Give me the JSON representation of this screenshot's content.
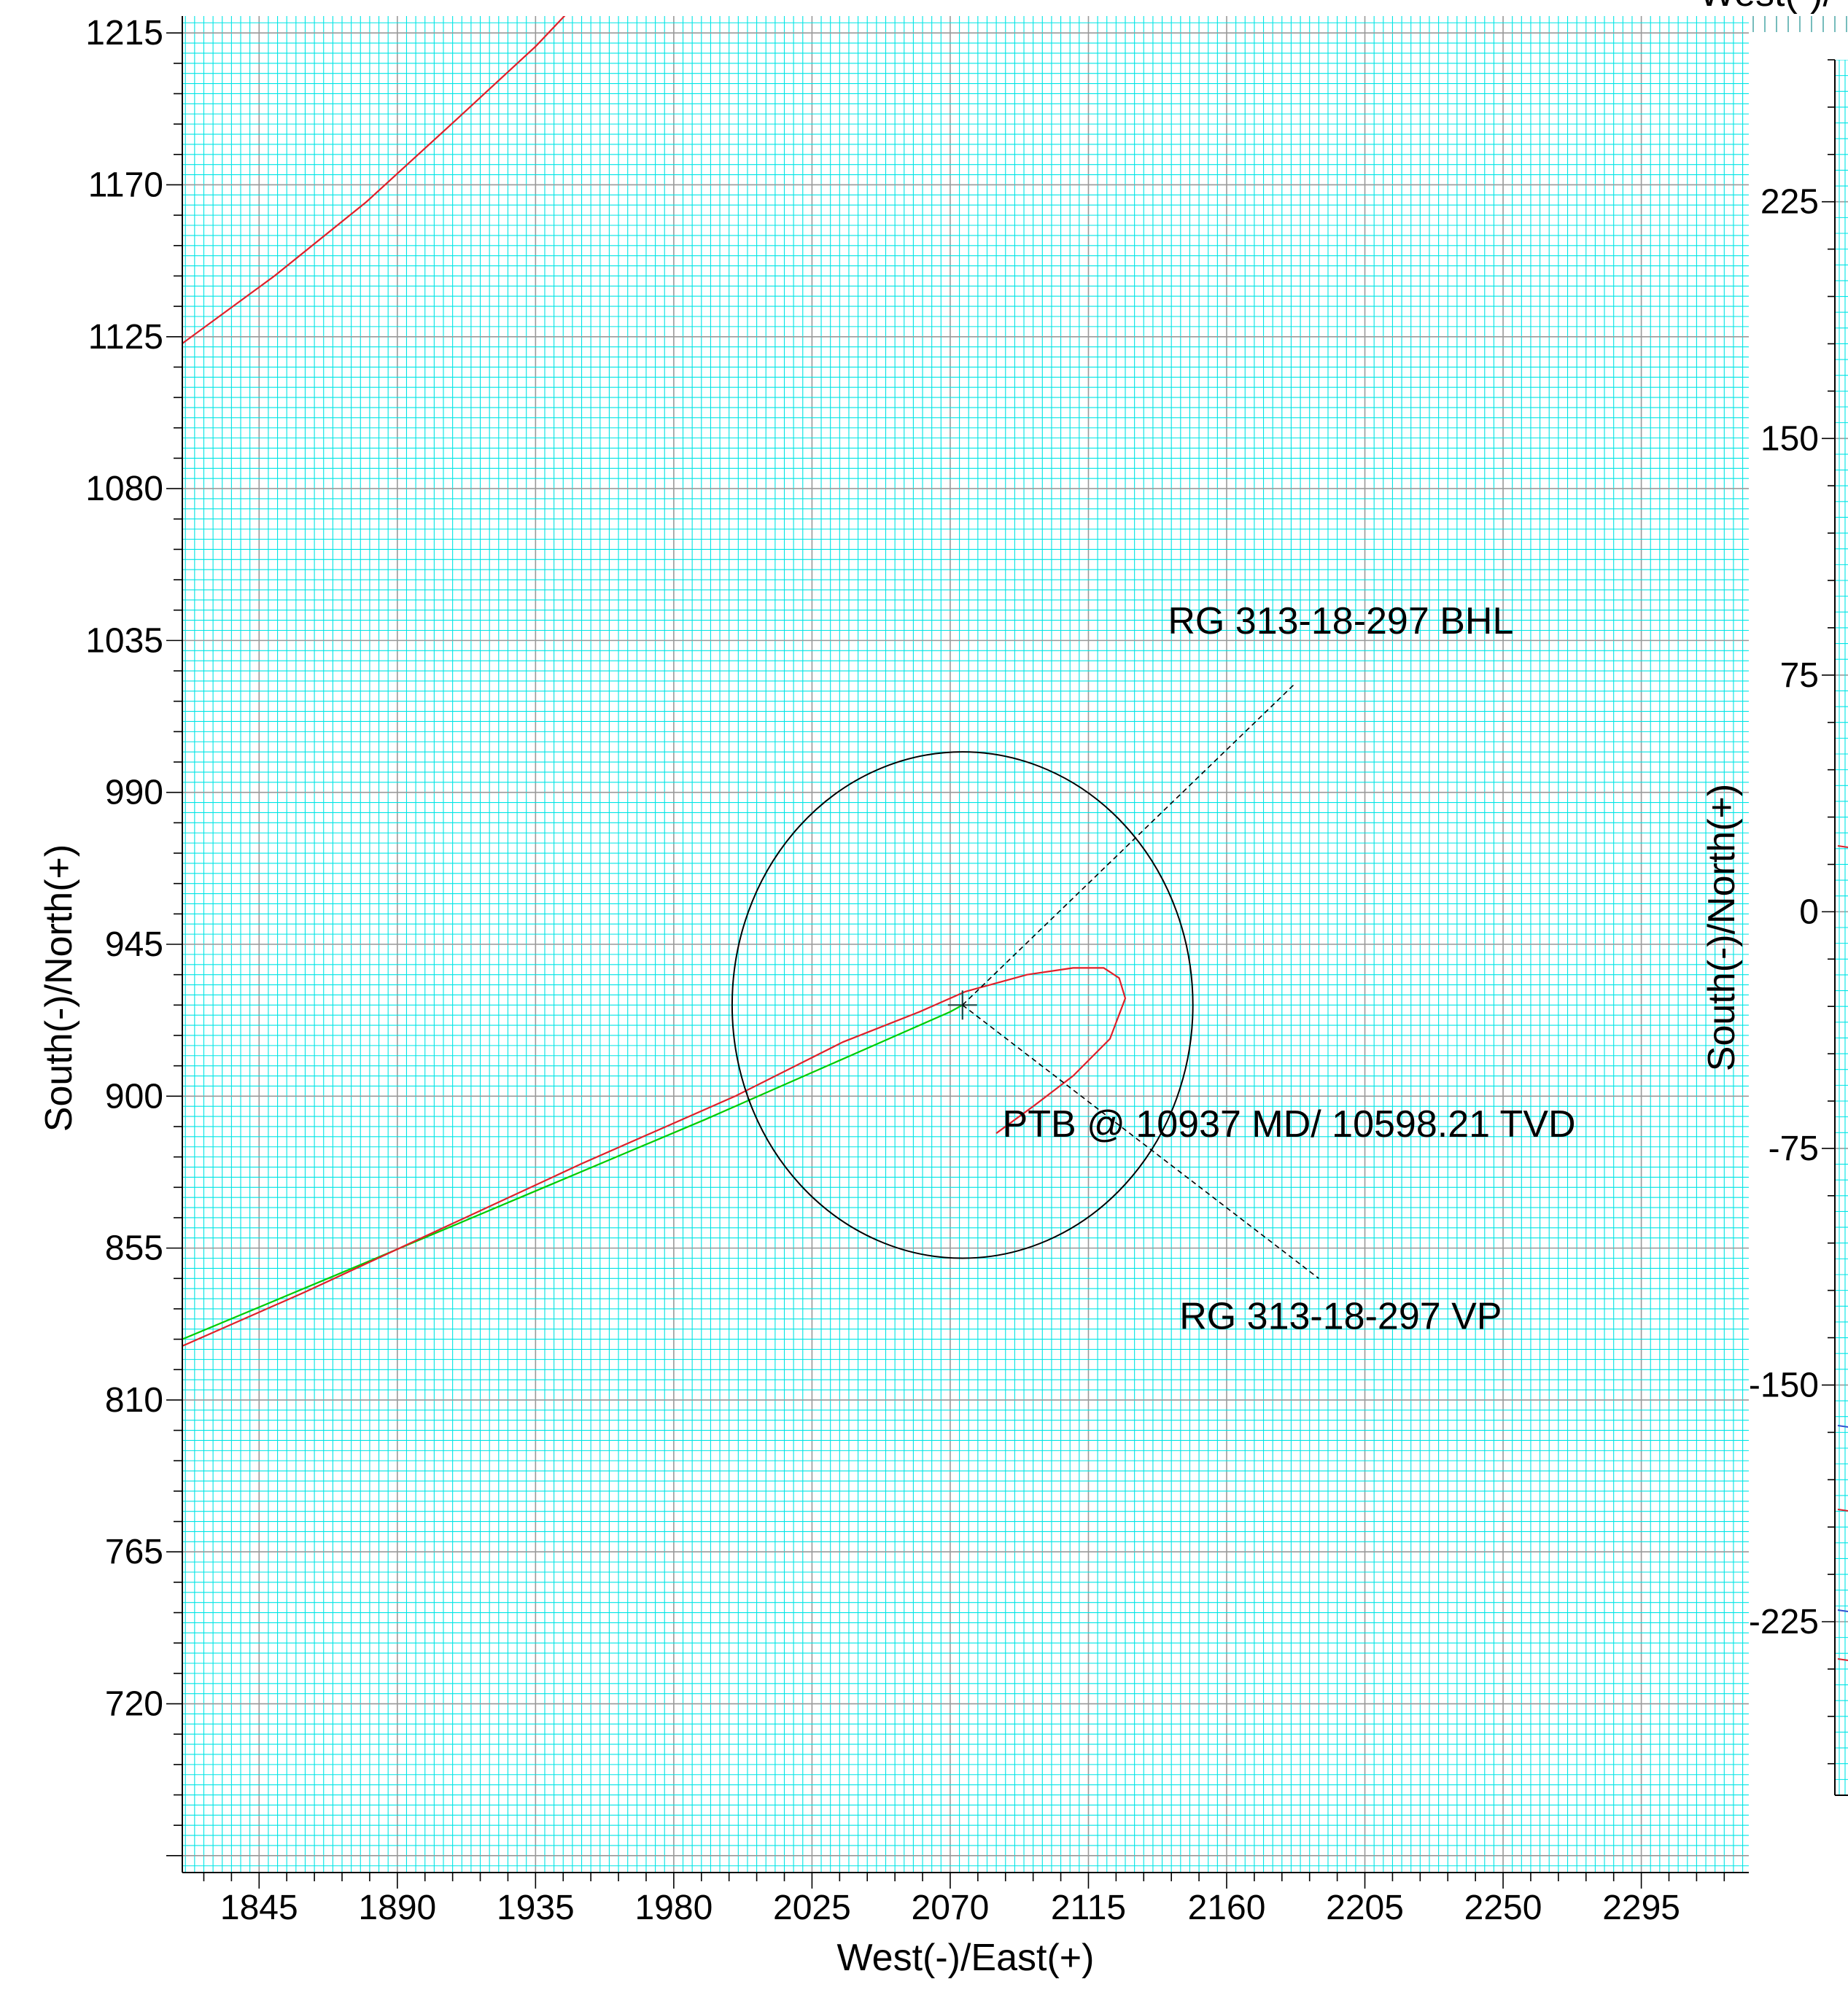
{
  "chart_data": [
    {
      "type": "line",
      "title": "",
      "xlabel": "West(-)/East(+)",
      "ylabel": "South(-)/North(+)",
      "xlim": [
        1820,
        2330
      ],
      "ylim": [
        670,
        1220
      ],
      "xticks": [
        "1845",
        "1890",
        "1935",
        "1980",
        "2025",
        "2070",
        "2115",
        "2160",
        "2205",
        "2250",
        "2295"
      ],
      "yticks": [
        "720",
        "765",
        "810",
        "855",
        "900",
        "945",
        "990",
        "1035",
        "1080",
        "1125",
        "1170",
        "1215"
      ],
      "grid": true,
      "colors": {
        "minor_grid": "#00e5e5",
        "major_grid": "#999999",
        "plan_line": "#00cc00",
        "actual_line": "#e0202a",
        "circle": "#000000",
        "leader": "#000000"
      },
      "series": [
        {
          "x": [
            1820,
            1850,
            1880,
            1910,
            1935,
            1960
          ],
          "y": [
            1123,
            1143,
            1165,
            1190,
            1211,
            1235
          ]
        },
        {
          "x": [
            1820,
            1870,
            1930,
            1990,
            2040,
            2060,
            2070,
            2074
          ],
          "y": [
            828,
            847,
            870,
            893,
            913,
            921,
            925,
            927
          ]
        },
        {
          "x": [
            1820,
            1860,
            1905,
            1950,
            2000,
            2035,
            2060,
            2075,
            2095,
            2110,
            2120,
            2125,
            2127,
            2122,
            2110,
            2097,
            2085
          ],
          "y": [
            826,
            842,
            861,
            880,
            900,
            916,
            925,
            931,
            936,
            938,
            938,
            935,
            929,
            917,
            906,
            897,
            889
          ]
        }
      ],
      "markers": [
        {
          "x": 2074,
          "y": 927
        }
      ],
      "circles": [
        {
          "cx": 2074,
          "cy": 927,
          "r": 75
        }
      ],
      "annotations": [
        {
          "text": "RG 313-18-297 BHL",
          "x": 2190,
          "y": 1037,
          "leader_from": [
            2074,
            927
          ],
          "leader_to": [
            2182,
            1022
          ]
        },
        {
          "text": "PTB @ 10937 MD/ 10598.21 TVD",
          "x": 2087,
          "y": 888
        },
        {
          "text": "RG 313-18-297 VP",
          "x": 2190,
          "y": 831,
          "leader_from": [
            2074,
            927
          ],
          "leader_to": [
            2190,
            846
          ]
        }
      ]
    },
    {
      "type": "line",
      "title": "",
      "xlabel": "West(-)/",
      "ylabel": "South(-)/North(+)",
      "ylim": [
        -280,
        270
      ],
      "yticks": [
        "225",
        "150",
        "75",
        "0",
        "-75",
        "-150",
        "-225"
      ],
      "grid": true
    }
  ]
}
